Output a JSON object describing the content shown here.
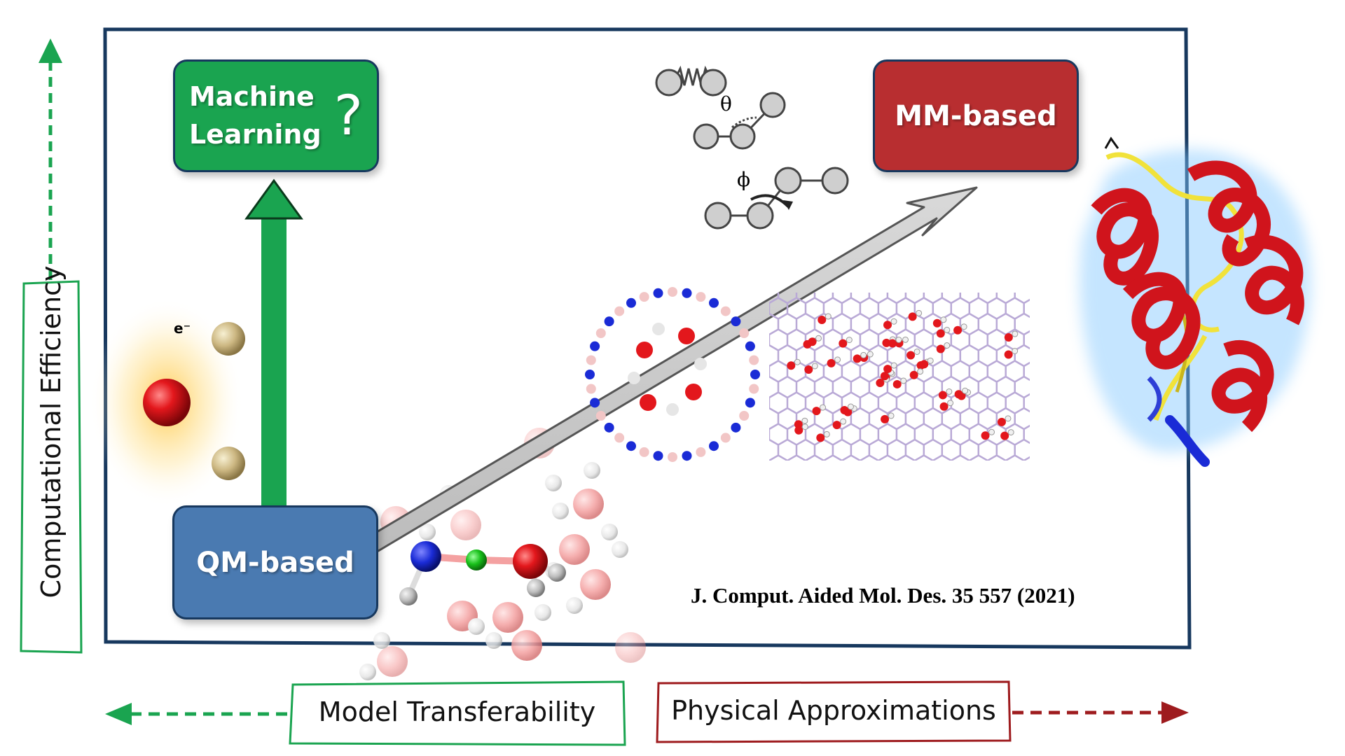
{
  "nodes": {
    "ml": {
      "line1": "Machine",
      "line2": "Learning",
      "mark": "?"
    },
    "qm": {
      "label": "QM-based"
    },
    "mm": {
      "label": "MM-based"
    }
  },
  "axes": {
    "y_label": "Computational Efficiency",
    "x_left_label": "Model Transferability",
    "x_right_label": "Physical Approximations"
  },
  "citation": "J. Comput. Aided Mol. Des.  35 557 (2021)",
  "glyphs": {
    "theta": "θ",
    "phi": "ϕ",
    "electron": "e⁻"
  },
  "colors": {
    "green": "#1aa450",
    "blue": "#4a7ab1",
    "red": "#b82e30",
    "navy": "#17385e",
    "dark_red": "#9e1b1e",
    "helix_red": "#d0141c",
    "coil_yellow": "#f1e23a"
  }
}
